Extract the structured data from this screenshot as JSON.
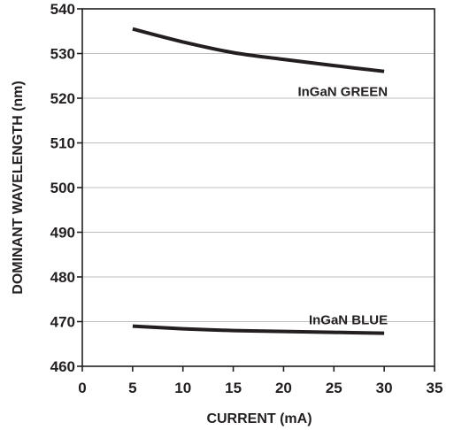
{
  "chart_data": {
    "type": "line",
    "title": "",
    "xlabel": "CURRENT (mA)",
    "ylabel": "DOMINANT WAVELENGTH (nm)",
    "xlim": [
      0,
      35
    ],
    "ylim": [
      460,
      540
    ],
    "xticks": [
      0,
      5,
      10,
      15,
      20,
      25,
      30,
      35
    ],
    "yticks": [
      460,
      470,
      480,
      490,
      500,
      510,
      520,
      530,
      540
    ],
    "xtick_labels": [
      "0",
      "5",
      "10",
      "15",
      "20",
      "25",
      "30",
      "35"
    ],
    "ytick_labels": [
      "460",
      "470",
      "480",
      "490",
      "500",
      "510",
      "520",
      "530",
      "540"
    ],
    "grid": true,
    "legend": "none",
    "series": [
      {
        "name": "InGaN GREEN",
        "color": "#231f20",
        "x": [
          5,
          10,
          15,
          20,
          25,
          30
        ],
        "y": [
          535.5,
          532.6,
          530.2,
          528.7,
          527.3,
          526.0
        ]
      },
      {
        "name": "InGaN BLUE",
        "color": "#231f20",
        "x": [
          5,
          10,
          15,
          20,
          25,
          30
        ],
        "y": [
          469.0,
          468.4,
          468.0,
          467.8,
          467.6,
          467.4
        ]
      }
    ]
  }
}
